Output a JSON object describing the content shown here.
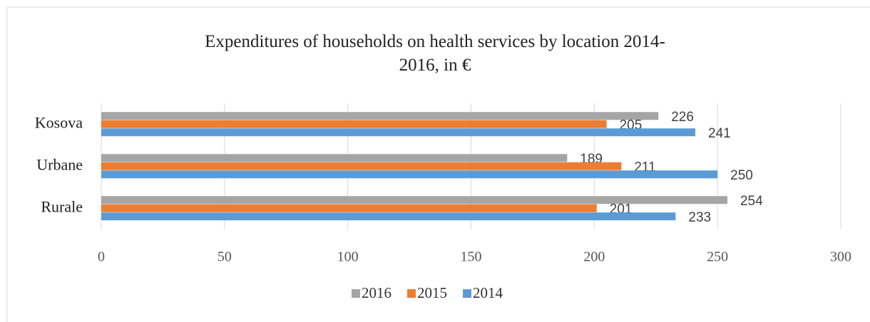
{
  "chart_data": {
    "type": "hbar",
    "title": "Expenditures of households on health services by location 2014-2016, in €",
    "categories": [
      "Kosova",
      "Urbane",
      "Rurale"
    ],
    "series": [
      {
        "name": "2016",
        "color": "#a5a5a5",
        "values": [
          226,
          189,
          254
        ]
      },
      {
        "name": "2015",
        "color": "#ed7d31",
        "values": [
          205,
          211,
          201
        ]
      },
      {
        "name": "2014",
        "color": "#5b9bd5",
        "values": [
          241,
          250,
          233
        ]
      }
    ],
    "xlim": [
      0,
      300
    ],
    "xticks": [
      0,
      50,
      100,
      150,
      200,
      250,
      300
    ],
    "grid": true,
    "legend": "bottom"
  }
}
